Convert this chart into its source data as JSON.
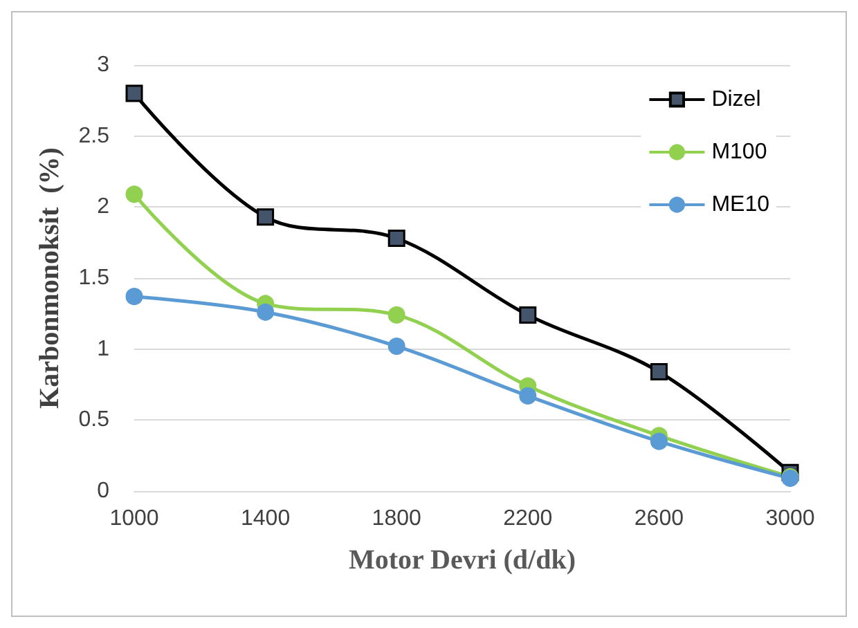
{
  "chart_data": {
    "type": "line",
    "xlabel": "Motor Devri (d/dk)",
    "ylabel": "Karbonmonoksit  (%)",
    "x": [
      1000,
      1400,
      1800,
      2200,
      2600,
      3000
    ],
    "series": [
      {
        "name": "Dizel",
        "color": "#000000",
        "marker": "square",
        "values": [
          2.8,
          1.93,
          1.78,
          1.24,
          0.84,
          0.13
        ]
      },
      {
        "name": "M100",
        "color": "#92d050",
        "marker": "circle",
        "values": [
          2.09,
          1.32,
          1.24,
          0.74,
          0.39,
          0.1
        ]
      },
      {
        "name": "ME10",
        "color": "#5b9bd5",
        "marker": "circle",
        "values": [
          1.37,
          1.26,
          1.02,
          0.67,
          0.35,
          0.09
        ]
      }
    ],
    "xlim": [
      1000,
      3000
    ],
    "xticks": [
      1000,
      1400,
      1800,
      2200,
      2600,
      3000
    ],
    "ylim": [
      0,
      3
    ],
    "yticks": [
      0,
      0.5,
      1,
      1.5,
      2,
      2.5,
      3
    ],
    "grid": "y",
    "legend": "top right"
  }
}
